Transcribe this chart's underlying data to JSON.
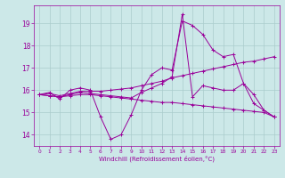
{
  "xlabel": "Windchill (Refroidissement éolien,°C)",
  "ylabel": "",
  "xlim": [
    -0.5,
    23.5
  ],
  "ylim": [
    13.5,
    19.8
  ],
  "yticks": [
    14,
    15,
    16,
    17,
    18,
    19
  ],
  "xticks": [
    0,
    1,
    2,
    3,
    4,
    5,
    6,
    7,
    8,
    9,
    10,
    11,
    12,
    13,
    14,
    15,
    16,
    17,
    18,
    19,
    20,
    21,
    22,
    23
  ],
  "bg_color": "#cce8e8",
  "grid_color": "#aacccc",
  "line_color": "#990099",
  "lines": [
    {
      "x": [
        0,
        1,
        2,
        3,
        4,
        5,
        6,
        7,
        8,
        9,
        10,
        11,
        12,
        13,
        14,
        15,
        16,
        17,
        18,
        19,
        20,
        21,
        22,
        23
      ],
      "y": [
        15.8,
        15.9,
        15.6,
        16.0,
        16.1,
        16.0,
        14.8,
        13.8,
        14.0,
        14.9,
        16.0,
        16.7,
        17.0,
        16.9,
        19.1,
        18.9,
        18.5,
        17.8,
        17.5,
        17.6,
        16.3,
        15.4,
        15.1,
        14.8
      ]
    },
    {
      "x": [
        0,
        1,
        2,
        3,
        4,
        5,
        6,
        7,
        8,
        9,
        10,
        11,
        12,
        13,
        14,
        15,
        16,
        17,
        18,
        19,
        20,
        21,
        22,
        23
      ],
      "y": [
        15.8,
        15.85,
        15.75,
        15.85,
        15.95,
        15.95,
        15.95,
        16.0,
        16.05,
        16.1,
        16.2,
        16.3,
        16.4,
        16.55,
        16.65,
        16.75,
        16.85,
        16.95,
        17.05,
        17.15,
        17.25,
        17.3,
        17.4,
        17.5
      ]
    },
    {
      "x": [
        0,
        1,
        2,
        3,
        4,
        5,
        6,
        7,
        8,
        9,
        10,
        11,
        12,
        13,
        14,
        15,
        16,
        17,
        18,
        19,
        20,
        21,
        22,
        23
      ],
      "y": [
        15.8,
        15.75,
        15.7,
        15.75,
        15.8,
        15.8,
        15.75,
        15.7,
        15.65,
        15.6,
        15.55,
        15.5,
        15.45,
        15.45,
        15.4,
        15.35,
        15.3,
        15.25,
        15.2,
        15.15,
        15.1,
        15.05,
        15.0,
        14.8
      ]
    },
    {
      "x": [
        0,
        1,
        2,
        3,
        4,
        5,
        6,
        7,
        8,
        9,
        10,
        11,
        12,
        13,
        14,
        15,
        16,
        17,
        18,
        19,
        20,
        21,
        22,
        23
      ],
      "y": [
        15.8,
        15.75,
        15.7,
        15.8,
        15.9,
        15.85,
        15.8,
        15.75,
        15.7,
        15.65,
        15.9,
        16.1,
        16.3,
        16.6,
        19.4,
        15.7,
        16.2,
        16.1,
        16.0,
        16.0,
        16.3,
        15.8,
        15.1,
        14.8
      ]
    }
  ]
}
